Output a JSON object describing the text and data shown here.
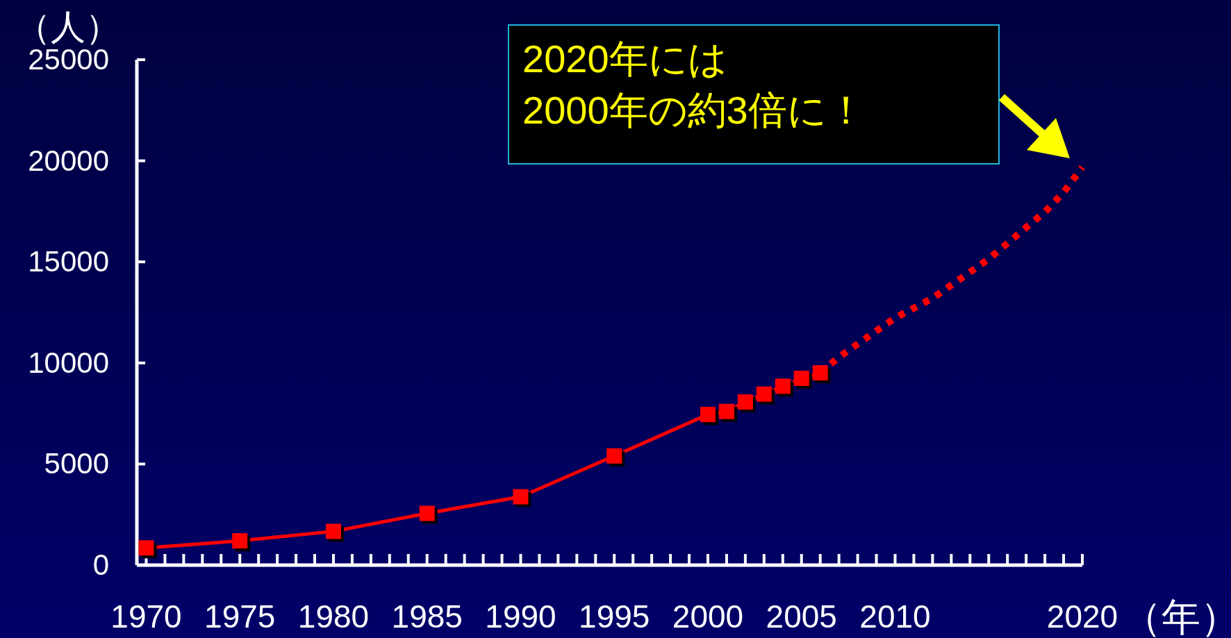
{
  "chart_data": {
    "type": "line",
    "xlabel": "（年）",
    "ylabel": "（人）",
    "xlim": [
      1969.5,
      2020
    ],
    "ylim": [
      0,
      25000
    ],
    "xticks": [
      1970,
      {
        "value": 1971,
        "label": null
      },
      {
        "value": 1972,
        "label": null
      },
      {
        "value": 1973,
        "label": null
      },
      {
        "value": 1974,
        "label": null
      },
      1975,
      {
        "value": 1976,
        "label": null
      },
      {
        "value": 1977,
        "label": null
      },
      {
        "value": 1978,
        "label": null
      },
      {
        "value": 1979,
        "label": null
      },
      1980,
      {
        "value": 1981,
        "label": null
      },
      {
        "value": 1982,
        "label": null
      },
      {
        "value": 1983,
        "label": null
      },
      {
        "value": 1984,
        "label": null
      },
      1985,
      {
        "value": 1986,
        "label": null
      },
      {
        "value": 1987,
        "label": null
      },
      {
        "value": 1988,
        "label": null
      },
      {
        "value": 1989,
        "label": null
      },
      1990,
      {
        "value": 1991,
        "label": null
      },
      {
        "value": 1992,
        "label": null
      },
      {
        "value": 1993,
        "label": null
      },
      {
        "value": 1994,
        "label": null
      },
      1995,
      {
        "value": 1996,
        "label": null
      },
      {
        "value": 1997,
        "label": null
      },
      {
        "value": 1998,
        "label": null
      },
      {
        "value": 1999,
        "label": null
      },
      2000,
      {
        "value": 2001,
        "label": null
      },
      {
        "value": 2002,
        "label": null
      },
      {
        "value": 2003,
        "label": null
      },
      {
        "value": 2004,
        "label": null
      },
      2005,
      {
        "value": 2006,
        "label": null
      },
      {
        "value": 2007,
        "label": null
      },
      {
        "value": 2008,
        "label": null
      },
      {
        "value": 2009,
        "label": null
      },
      2010,
      {
        "value": 2011,
        "label": null
      },
      {
        "value": 2012,
        "label": null
      },
      {
        "value": 2013,
        "label": null
      },
      {
        "value": 2014,
        "label": null
      },
      {
        "value": 2015,
        "label": null
      },
      {
        "value": 2016,
        "label": null
      },
      {
        "value": 2017,
        "label": null
      },
      {
        "value": 2018,
        "label": null
      },
      {
        "value": 2019,
        "label": null
      },
      2020
    ],
    "yticks": [
      0,
      5000,
      10000,
      15000,
      20000,
      25000
    ],
    "grid": false,
    "series": [
      {
        "color": "#ff0000",
        "marker": "square",
        "line_style": "solid",
        "x": [
          1970,
          1975,
          1980,
          1985,
          1990,
          1995,
          2000,
          2001,
          2002,
          2003,
          2004,
          2005,
          2006
        ],
        "values": [
          850,
          1200,
          1670,
          2560,
          3380,
          5400,
          7450,
          7600,
          8070,
          8460,
          8850,
          9240,
          9510
        ]
      },
      {
        "color": "#ff0000",
        "marker": "none",
        "line_style": "dotted",
        "x": [
          2006,
          2007,
          2010,
          2012,
          2015,
          2017,
          2018,
          2019,
          2020
        ],
        "values": [
          9510,
          10290,
          12230,
          13200,
          15140,
          16700,
          17470,
          18440,
          19680
        ]
      }
    ],
    "annotations": [
      "2020年には\n2000年の約3倍に！"
    ]
  }
}
